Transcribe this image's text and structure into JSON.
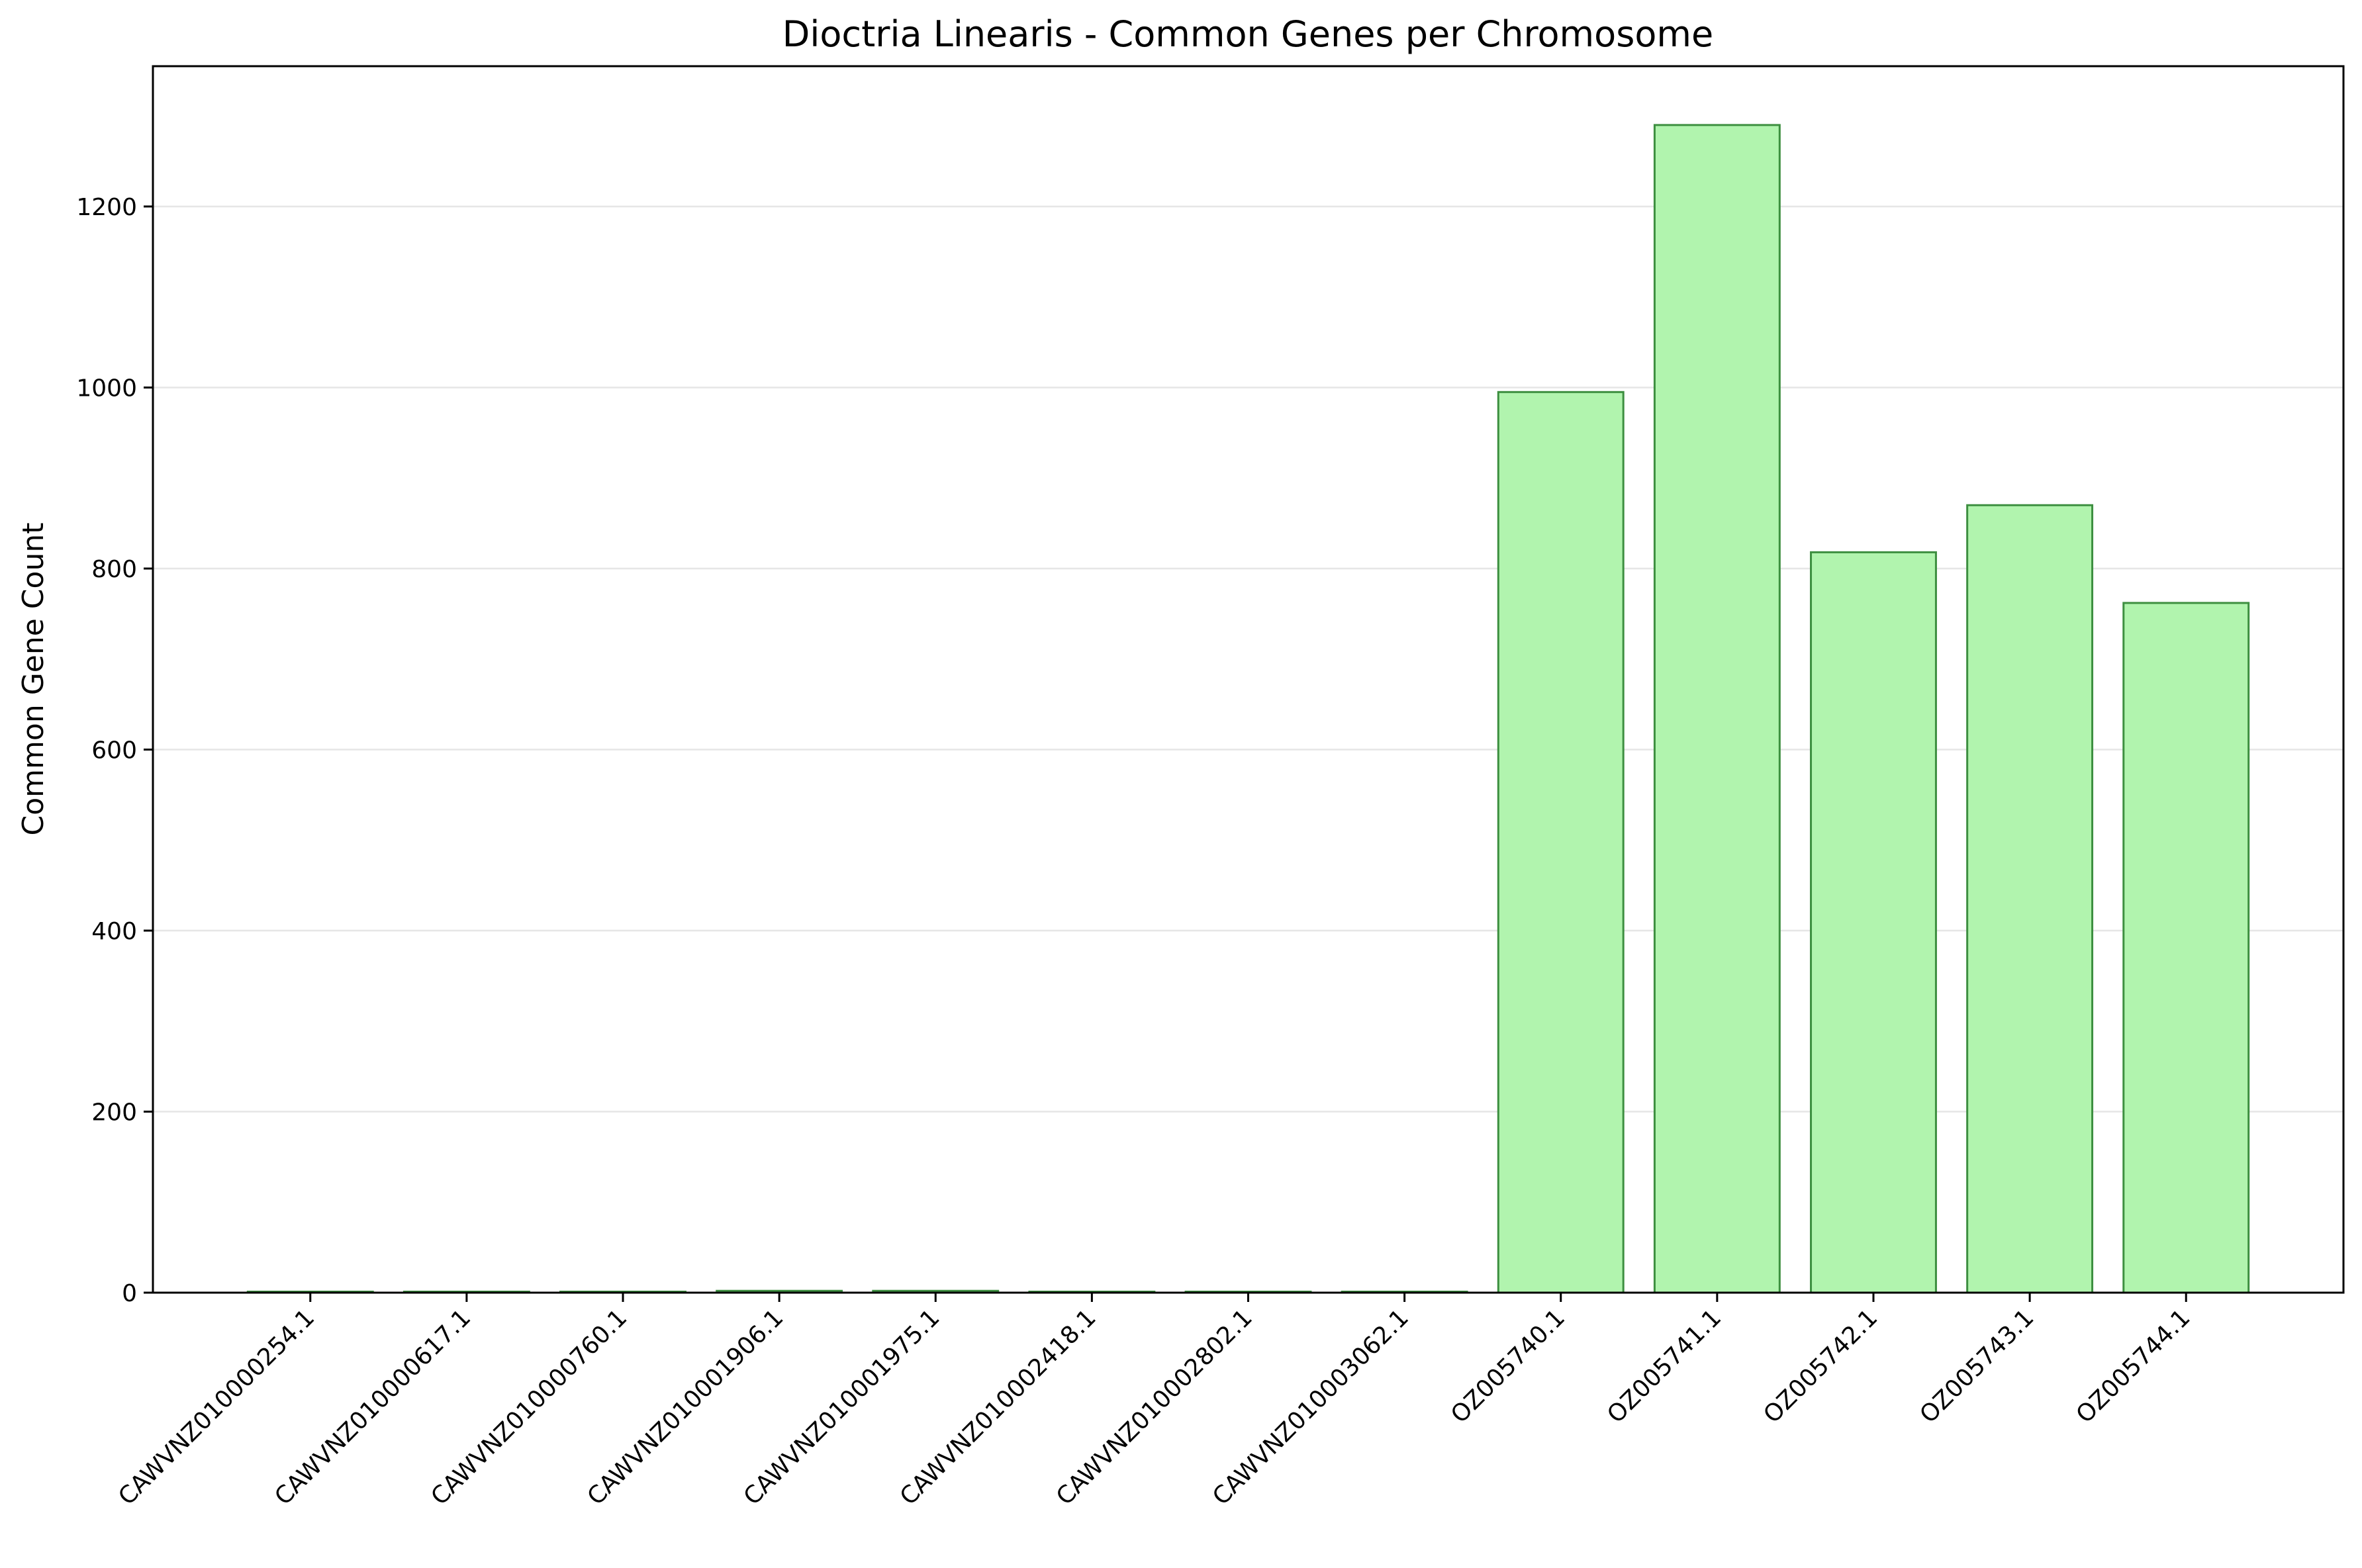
{
  "chart_data": {
    "type": "bar",
    "title": "Dioctria Linearis - Common Genes per Chromosome",
    "xlabel": "",
    "ylabel": "Common Gene Count",
    "categories": [
      "CAWVNZ010000254.1",
      "CAWVNZ010000617.1",
      "CAWVNZ010000760.1",
      "CAWVNZ010001906.1",
      "CAWVNZ010001975.1",
      "CAWVNZ010002418.1",
      "CAWVNZ010002802.1",
      "CAWVNZ010003062.1",
      "OZ005740.1",
      "OZ005741.1",
      "OZ005742.1",
      "OZ005743.1",
      "OZ005744.1"
    ],
    "values": [
      1,
      1,
      1,
      2,
      2,
      1,
      1,
      1,
      995,
      1290,
      818,
      870,
      762
    ],
    "ylim": [
      0,
      1355
    ],
    "yticks": [
      0,
      200,
      400,
      600,
      800,
      1000,
      1200
    ],
    "grid": "horizontal",
    "colors": {
      "bar_fill": "#b1f4ae",
      "bar_edge": "#3d8f40",
      "grid": "#e6e6e6"
    }
  }
}
